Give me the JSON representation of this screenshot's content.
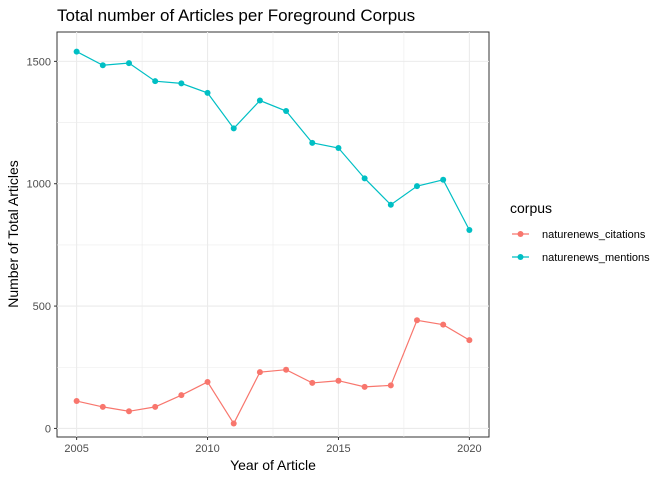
{
  "chart_data": {
    "type": "line",
    "title": "Total number of Articles per Foreground Corpus",
    "xlabel": "Year of Article",
    "ylabel": "Number of Total Articles",
    "x": [
      2005,
      2006,
      2007,
      2008,
      2009,
      2010,
      2011,
      2012,
      2013,
      2014,
      2015,
      2016,
      2017,
      2018,
      2019,
      2020
    ],
    "xlim": [
      2004.25,
      2020.75
    ],
    "ylim": [
      -35,
      1620
    ],
    "xticks": [
      2005,
      2010,
      2015,
      2020
    ],
    "yticks": [
      0,
      500,
      1000,
      1500
    ],
    "grid": true,
    "legend": {
      "title": "corpus",
      "position": "right"
    },
    "series": [
      {
        "name": "naturenews_citations",
        "color": "#F8766D",
        "values": [
          112,
          88,
          70,
          88,
          136,
          190,
          20,
          230,
          240,
          186,
          195,
          170,
          176,
          442,
          424,
          361
        ]
      },
      {
        "name": "naturenews_mentions",
        "color": "#00BFC4",
        "values": [
          1540,
          1484,
          1493,
          1419,
          1410,
          1371,
          1226,
          1340,
          1297,
          1167,
          1146,
          1022,
          914,
          990,
          1016,
          811
        ]
      }
    ]
  }
}
